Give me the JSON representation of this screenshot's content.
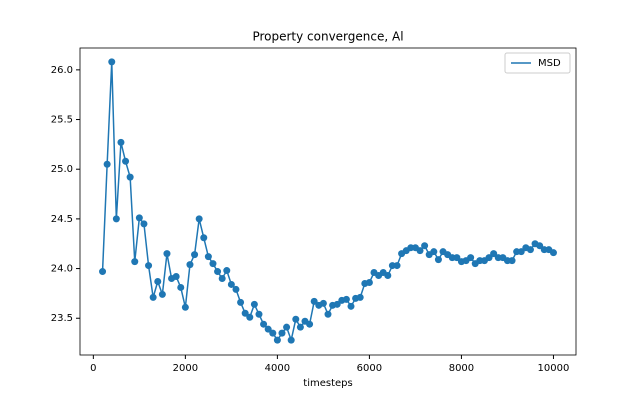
{
  "chart_data": {
    "type": "line",
    "title": "Property convergence, Al",
    "x_label": "timesteps",
    "x": [
      200,
      300,
      400,
      500,
      600,
      700,
      800,
      900,
      1000,
      1100,
      1200,
      1300,
      1400,
      1500,
      1600,
      1700,
      1800,
      1900,
      2000,
      2100,
      2200,
      2300,
      2400,
      2500,
      2600,
      2700,
      2800,
      2900,
      3000,
      3100,
      3200,
      3300,
      3400,
      3500,
      3600,
      3700,
      3800,
      3900,
      4000,
      4100,
      4200,
      4300,
      4400,
      4500,
      4600,
      4700,
      4800,
      4900,
      5000,
      5100,
      5200,
      5300,
      5400,
      5500,
      5600,
      5700,
      5800,
      5900,
      6000,
      6100,
      6200,
      6300,
      6400,
      6500,
      6600,
      6700,
      6800,
      6900,
      7000,
      7100,
      7200,
      7300,
      7400,
      7500,
      7600,
      7700,
      7800,
      7900,
      8000,
      8100,
      8200,
      8300,
      8400,
      8500,
      8600,
      8700,
      8800,
      8900,
      9000,
      9100,
      9200,
      9300,
      9400,
      9500,
      9600,
      9700,
      9800,
      9900,
      10000
    ],
    "series": [
      {
        "name": "MSD",
        "color": "#1f77b4",
        "values": [
          23.97,
          25.05,
          26.08,
          24.5,
          25.27,
          25.08,
          24.92,
          24.07,
          24.51,
          24.45,
          24.03,
          23.71,
          23.87,
          23.74,
          24.15,
          23.9,
          23.92,
          23.81,
          23.61,
          24.04,
          24.14,
          24.5,
          24.31,
          24.12,
          24.05,
          23.97,
          23.9,
          23.98,
          23.84,
          23.79,
          23.66,
          23.55,
          23.51,
          23.64,
          23.54,
          23.44,
          23.39,
          23.35,
          23.28,
          23.35,
          23.41,
          23.28,
          23.49,
          23.41,
          23.47,
          23.44,
          23.67,
          23.63,
          23.65,
          23.54,
          23.63,
          23.64,
          23.68,
          23.69,
          23.62,
          23.7,
          23.71,
          23.85,
          23.86,
          23.96,
          23.93,
          23.96,
          23.93,
          24.03,
          24.03,
          24.15,
          24.18,
          24.21,
          24.21,
          24.18,
          24.23,
          24.14,
          24.17,
          24.09,
          24.17,
          24.14,
          24.11,
          24.11,
          24.07,
          24.08,
          24.11,
          24.05,
          24.08,
          24.08,
          24.11,
          24.15,
          24.11,
          24.11,
          24.08,
          24.08,
          24.17,
          24.17,
          24.21,
          24.19,
          24.25,
          24.23,
          24.19,
          24.19,
          24.16
        ]
      }
    ],
    "xlim": [
      -290,
      10490
    ],
    "xticks": [
      0,
      2000,
      4000,
      6000,
      8000,
      10000
    ],
    "ylim": [
      23.13,
      26.22
    ],
    "yticks": [
      23.5,
      {
        "value": 24,
        "label": "24.0"
      },
      24.5,
      {
        "value": 25,
        "label": "25.0"
      },
      25.5,
      {
        "value": 26,
        "label": "26.0"
      }
    ],
    "grid": false,
    "legend": "upper right"
  }
}
